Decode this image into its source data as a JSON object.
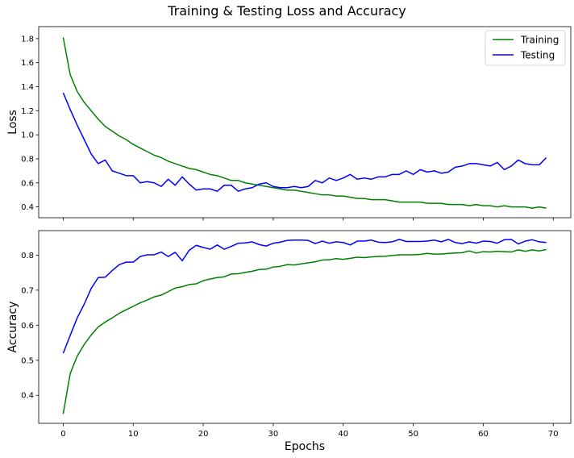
{
  "title": "Training & Testing Loss and Accuracy",
  "chart_data": [
    {
      "type": "line",
      "ylabel": "Loss",
      "xlabel": "",
      "xlim": [
        -3.5,
        72.5
      ],
      "ylim": [
        0.31,
        1.9
      ],
      "yticks": [
        0.4,
        0.6,
        0.8,
        1.0,
        1.2,
        1.4,
        1.6,
        1.8
      ],
      "ytick_labels": [
        "0.4",
        "0.6",
        "0.8",
        "1.0",
        "1.2",
        "1.4",
        "1.6",
        "1.8"
      ],
      "xticks": [
        0,
        10,
        20,
        30,
        40,
        50,
        60,
        70
      ],
      "legend": {
        "placement": "top-right"
      },
      "grid": false,
      "x": [
        0,
        1,
        2,
        3,
        4,
        5,
        6,
        7,
        8,
        9,
        10,
        11,
        12,
        13,
        14,
        15,
        16,
        17,
        18,
        19,
        20,
        21,
        22,
        23,
        24,
        25,
        26,
        27,
        28,
        29,
        30,
        31,
        32,
        33,
        34,
        35,
        36,
        37,
        38,
        39,
        40,
        41,
        42,
        43,
        44,
        45,
        46,
        47,
        48,
        49,
        50,
        51,
        52,
        53,
        54,
        55,
        56,
        57,
        58,
        59,
        60,
        61,
        62,
        63,
        64,
        65,
        66,
        67,
        68,
        69
      ],
      "series": [
        {
          "name": "Training",
          "color": "#008000",
          "values": [
            1.81,
            1.5,
            1.36,
            1.27,
            1.2,
            1.13,
            1.07,
            1.03,
            0.99,
            0.96,
            0.92,
            0.89,
            0.86,
            0.83,
            0.81,
            0.78,
            0.76,
            0.74,
            0.72,
            0.71,
            0.69,
            0.67,
            0.66,
            0.64,
            0.62,
            0.62,
            0.6,
            0.59,
            0.58,
            0.57,
            0.56,
            0.55,
            0.54,
            0.54,
            0.53,
            0.52,
            0.51,
            0.5,
            0.5,
            0.49,
            0.49,
            0.48,
            0.47,
            0.47,
            0.46,
            0.46,
            0.46,
            0.45,
            0.44,
            0.44,
            0.44,
            0.44,
            0.43,
            0.43,
            0.43,
            0.42,
            0.42,
            0.42,
            0.41,
            0.42,
            0.41,
            0.41,
            0.4,
            0.41,
            0.4,
            0.4,
            0.4,
            0.39,
            0.4,
            0.39
          ]
        },
        {
          "name": "Testing",
          "color": "#0000ff",
          "values": [
            1.35,
            1.21,
            1.08,
            0.96,
            0.84,
            0.76,
            0.79,
            0.7,
            0.68,
            0.66,
            0.66,
            0.6,
            0.61,
            0.6,
            0.57,
            0.63,
            0.58,
            0.65,
            0.59,
            0.54,
            0.55,
            0.55,
            0.53,
            0.58,
            0.58,
            0.53,
            0.55,
            0.56,
            0.59,
            0.6,
            0.57,
            0.56,
            0.56,
            0.57,
            0.56,
            0.57,
            0.62,
            0.6,
            0.64,
            0.62,
            0.64,
            0.67,
            0.63,
            0.64,
            0.63,
            0.65,
            0.65,
            0.67,
            0.67,
            0.7,
            0.67,
            0.71,
            0.69,
            0.7,
            0.68,
            0.69,
            0.73,
            0.74,
            0.76,
            0.76,
            0.75,
            0.74,
            0.77,
            0.71,
            0.74,
            0.79,
            0.76,
            0.75,
            0.75,
            0.81
          ]
        }
      ]
    },
    {
      "type": "line",
      "ylabel": "Accuracy",
      "xlabel": "Epochs",
      "xlim": [
        -3.5,
        72.5
      ],
      "ylim": [
        0.32,
        0.87
      ],
      "yticks": [
        0.4,
        0.5,
        0.6,
        0.7,
        0.8
      ],
      "ytick_labels": [
        "0.4",
        "0.5",
        "0.6",
        "0.7",
        "0.8"
      ],
      "xticks": [
        0,
        10,
        20,
        30,
        40,
        50,
        60,
        70
      ],
      "xtick_labels": [
        "0",
        "10",
        "20",
        "30",
        "40",
        "50",
        "60",
        "70"
      ],
      "grid": false,
      "x": [
        0,
        1,
        2,
        3,
        4,
        5,
        6,
        7,
        8,
        9,
        10,
        11,
        12,
        13,
        14,
        15,
        16,
        17,
        18,
        19,
        20,
        21,
        22,
        23,
        24,
        25,
        26,
        27,
        28,
        29,
        30,
        31,
        32,
        33,
        34,
        35,
        36,
        37,
        38,
        39,
        40,
        41,
        42,
        43,
        44,
        45,
        46,
        47,
        48,
        49,
        50,
        51,
        52,
        53,
        54,
        55,
        56,
        57,
        58,
        59,
        60,
        61,
        62,
        63,
        64,
        65,
        66,
        67,
        68,
        69
      ],
      "series": [
        {
          "name": "Training",
          "color": "#008000",
          "values": [
            0.347,
            0.462,
            0.512,
            0.545,
            0.572,
            0.595,
            0.609,
            0.621,
            0.634,
            0.644,
            0.654,
            0.664,
            0.672,
            0.681,
            0.686,
            0.696,
            0.706,
            0.71,
            0.716,
            0.718,
            0.727,
            0.732,
            0.736,
            0.738,
            0.746,
            0.747,
            0.751,
            0.754,
            0.759,
            0.76,
            0.766,
            0.768,
            0.773,
            0.772,
            0.775,
            0.778,
            0.781,
            0.786,
            0.787,
            0.79,
            0.788,
            0.791,
            0.794,
            0.793,
            0.795,
            0.796,
            0.797,
            0.799,
            0.801,
            0.801,
            0.801,
            0.802,
            0.805,
            0.803,
            0.803,
            0.805,
            0.806,
            0.807,
            0.812,
            0.806,
            0.81,
            0.809,
            0.811,
            0.81,
            0.809,
            0.815,
            0.811,
            0.815,
            0.812,
            0.816
          ]
        },
        {
          "name": "Testing",
          "color": "#0000ff",
          "values": [
            0.52,
            0.571,
            0.621,
            0.66,
            0.705,
            0.736,
            0.737,
            0.756,
            0.773,
            0.78,
            0.78,
            0.796,
            0.801,
            0.801,
            0.809,
            0.796,
            0.808,
            0.784,
            0.814,
            0.828,
            0.822,
            0.817,
            0.829,
            0.817,
            0.825,
            0.834,
            0.835,
            0.838,
            0.83,
            0.826,
            0.834,
            0.837,
            0.842,
            0.843,
            0.843,
            0.842,
            0.833,
            0.84,
            0.834,
            0.838,
            0.836,
            0.829,
            0.84,
            0.84,
            0.843,
            0.837,
            0.836,
            0.838,
            0.845,
            0.839,
            0.839,
            0.839,
            0.84,
            0.843,
            0.838,
            0.845,
            0.836,
            0.833,
            0.838,
            0.834,
            0.84,
            0.839,
            0.834,
            0.844,
            0.845,
            0.832,
            0.84,
            0.844,
            0.838,
            0.836
          ]
        }
      ]
    }
  ]
}
